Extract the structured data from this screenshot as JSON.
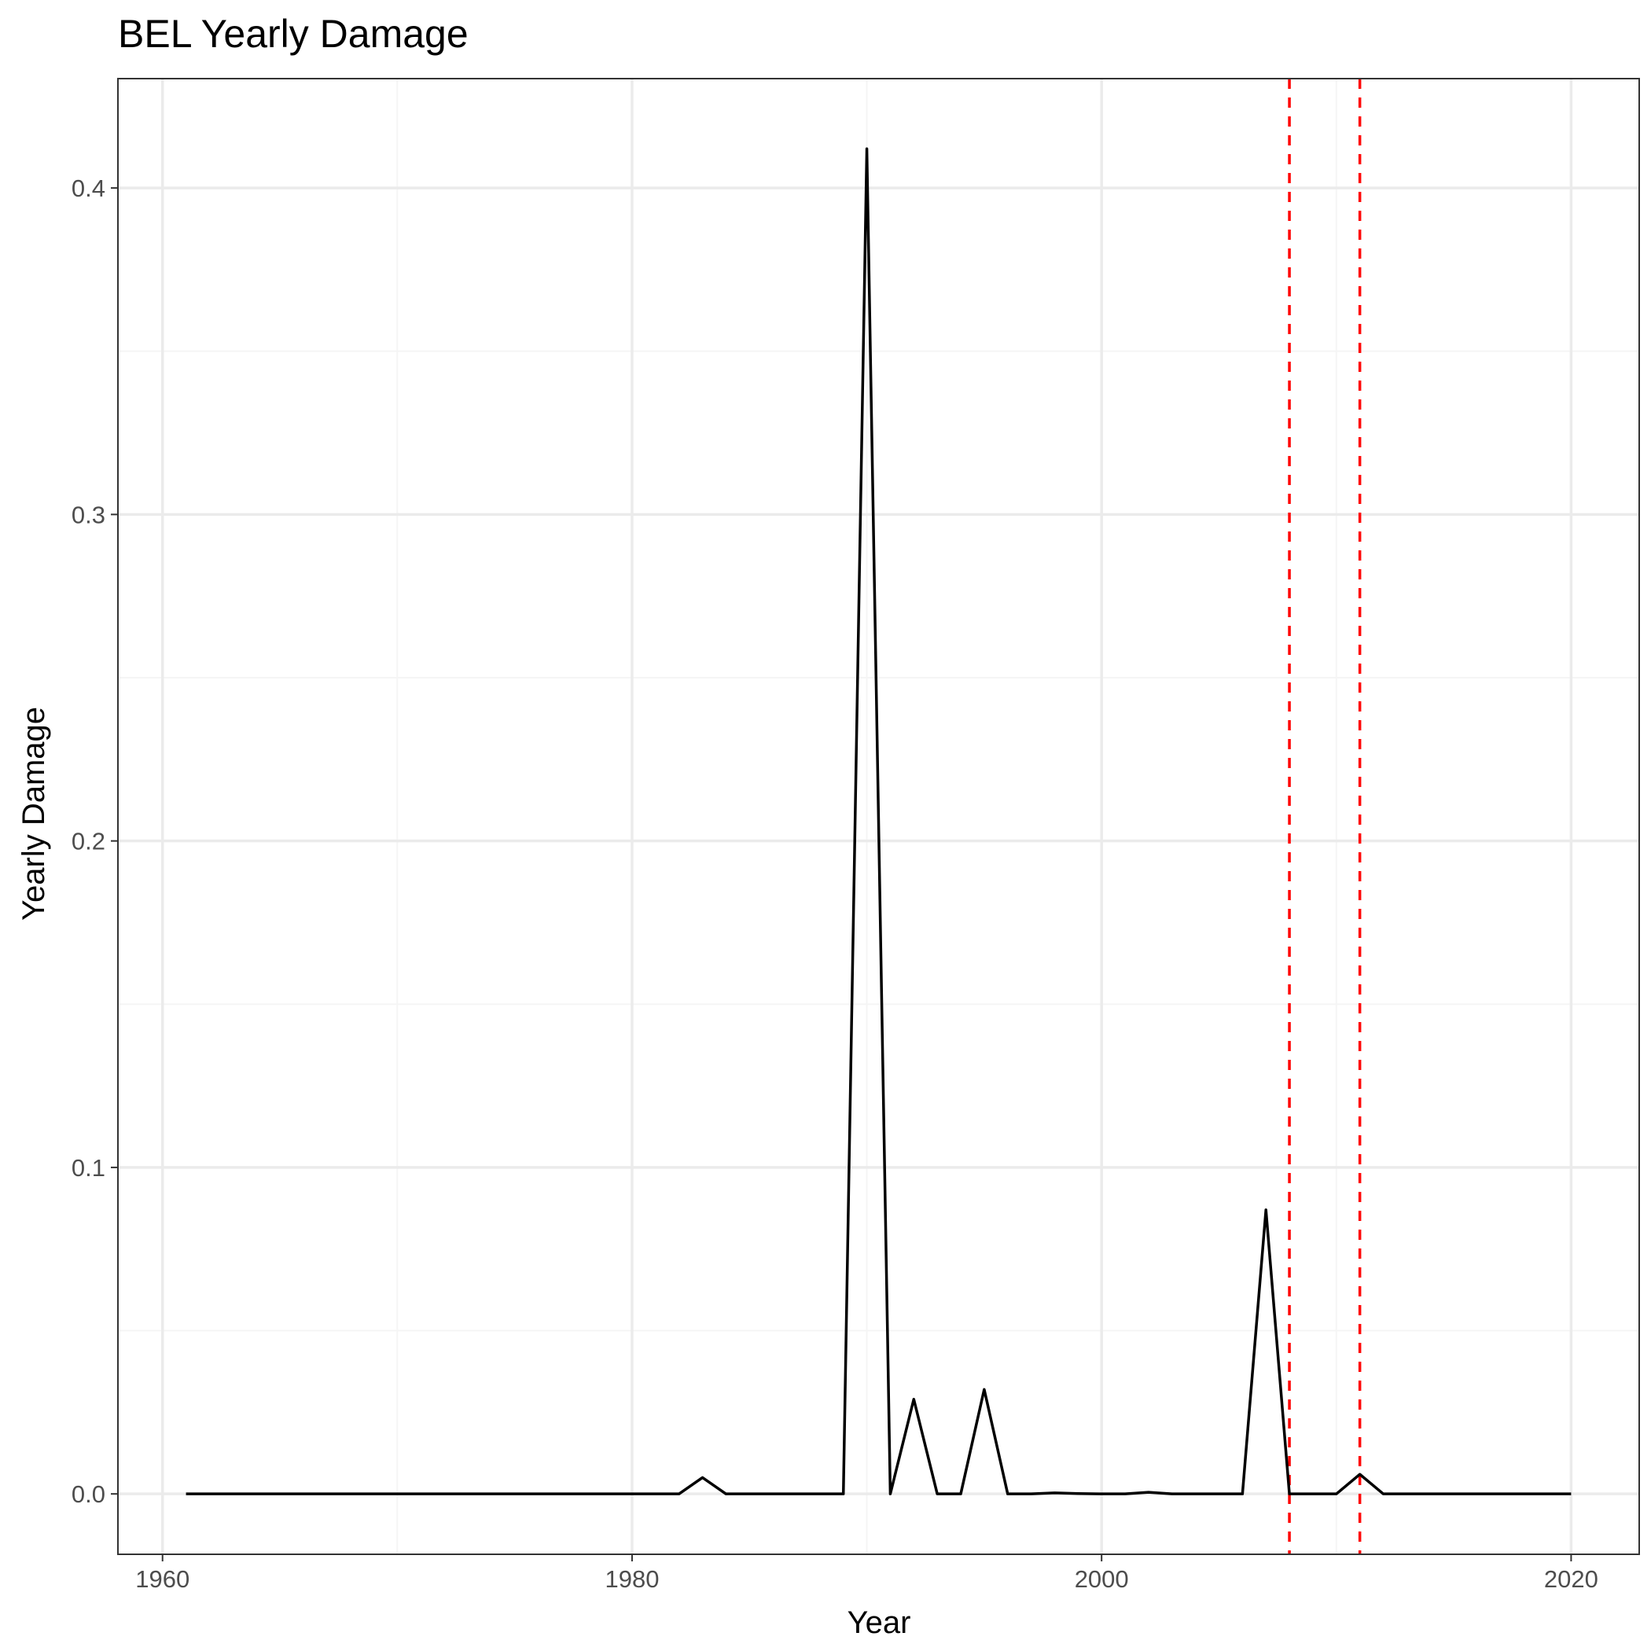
{
  "chart_data": {
    "type": "line",
    "title": "BEL Yearly Damage",
    "xlabel": "Year",
    "ylabel": "Yearly Damage",
    "xlim": [
      1958.1,
      2022.9
    ],
    "ylim": [
      -0.0185,
      0.4335
    ],
    "x_ticks": [
      1960,
      1980,
      2000,
      2020
    ],
    "x_tick_labels": [
      "1960",
      "1980",
      "2000",
      "2020"
    ],
    "x_minor_ticks": [
      1970,
      1990,
      2010
    ],
    "y_ticks": [
      0.0,
      0.1,
      0.2,
      0.3,
      0.4
    ],
    "y_tick_labels": [
      "0.0",
      "0.1",
      "0.2",
      "0.3",
      "0.4"
    ],
    "y_minor_ticks": [
      0.05,
      0.15,
      0.25,
      0.35
    ],
    "grid": true,
    "legend": "none",
    "series": [
      {
        "color": "#000000",
        "x": [
          1961,
          1962,
          1963,
          1964,
          1965,
          1966,
          1967,
          1968,
          1969,
          1970,
          1971,
          1972,
          1973,
          1974,
          1975,
          1976,
          1977,
          1978,
          1979,
          1980,
          1981,
          1982,
          1983,
          1984,
          1985,
          1986,
          1987,
          1988,
          1989,
          1990,
          1991,
          1992,
          1993,
          1994,
          1995,
          1996,
          1997,
          1998,
          1999,
          2000,
          2001,
          2002,
          2003,
          2004,
          2005,
          2006,
          2007,
          2008,
          2009,
          2010,
          2011,
          2012,
          2013,
          2014,
          2015,
          2016,
          2017,
          2018,
          2019,
          2020
        ],
        "y": [
          0,
          0,
          0,
          0,
          0,
          0,
          0,
          0,
          0,
          0,
          0,
          0,
          0,
          0,
          0,
          0,
          0,
          0,
          0,
          0,
          0,
          0,
          0.005,
          0,
          0,
          0,
          0,
          0,
          0,
          0.412,
          0,
          0.029,
          0,
          0,
          0.032,
          0,
          0,
          0.0003,
          0.0001,
          0,
          0,
          0.0005,
          0,
          0,
          0,
          0,
          0.087,
          0,
          0,
          0,
          0.006,
          0,
          0,
          0,
          0,
          0,
          0,
          0,
          0,
          0
        ]
      }
    ],
    "vlines": [
      {
        "x": 2008,
        "color": "#ff0000",
        "style": "dashed"
      },
      {
        "x": 2011,
        "color": "#ff0000",
        "style": "dashed"
      }
    ],
    "colors": {
      "grid_major": "#ebebeb",
      "grid_minor": "#f5f5f5",
      "panel_border": "#333333",
      "line": "#000000",
      "vline": "#ff0000"
    }
  }
}
